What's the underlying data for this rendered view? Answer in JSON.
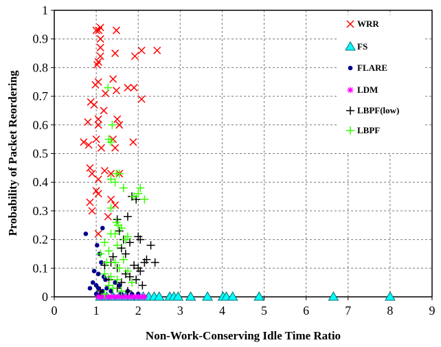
{
  "chart_data": {
    "type": "scatter",
    "title": "",
    "xlabel": "Non-Work-Conserving Idle Time Ratio",
    "ylabel": "Probability of Packet Reordering",
    "xlim": [
      0,
      9
    ],
    "ylim": [
      0,
      1
    ],
    "x_ticks": [
      "0",
      "1",
      "2",
      "3",
      "4",
      "5",
      "6",
      "7",
      "8",
      "9"
    ],
    "y_ticks": [
      "0",
      "0.1",
      "0.2",
      "0.3",
      "0.4",
      "0.5",
      "0.6",
      "0.7",
      "0.8",
      "0.9",
      "1"
    ],
    "grid": true,
    "legend_position": "top-right",
    "series": [
      {
        "name": "WRR",
        "marker": "x",
        "color": "#ff0000",
        "points": [
          [
            1.0,
            0.93
          ],
          [
            1.06,
            0.93
          ],
          [
            1.1,
            0.94
          ],
          [
            1.48,
            0.93
          ],
          [
            1.1,
            0.9
          ],
          [
            1.1,
            0.87
          ],
          [
            1.1,
            0.84
          ],
          [
            1.45,
            0.85
          ],
          [
            1.92,
            0.84
          ],
          [
            2.08,
            0.86
          ],
          [
            2.45,
            0.86
          ],
          [
            1.02,
            0.81
          ],
          [
            1.05,
            0.82
          ],
          [
            0.98,
            0.74
          ],
          [
            1.05,
            0.75
          ],
          [
            1.4,
            0.76
          ],
          [
            1.22,
            0.71
          ],
          [
            1.48,
            0.72
          ],
          [
            1.75,
            0.73
          ],
          [
            1.9,
            0.73
          ],
          [
            2.08,
            0.69
          ],
          [
            0.87,
            0.68
          ],
          [
            0.95,
            0.67
          ],
          [
            1.18,
            0.65
          ],
          [
            1.05,
            0.62
          ],
          [
            1.5,
            0.62
          ],
          [
            1.55,
            0.6
          ],
          [
            0.8,
            0.61
          ],
          [
            1.05,
            0.6
          ],
          [
            0.7,
            0.54
          ],
          [
            0.82,
            0.53
          ],
          [
            1.0,
            0.55
          ],
          [
            1.12,
            0.52
          ],
          [
            1.4,
            0.55
          ],
          [
            1.45,
            0.52
          ],
          [
            1.88,
            0.54
          ],
          [
            0.85,
            0.45
          ],
          [
            0.9,
            0.43
          ],
          [
            1.2,
            0.44
          ],
          [
            1.35,
            0.43
          ],
          [
            1.55,
            0.43
          ],
          [
            1.05,
            0.41
          ],
          [
            1.0,
            0.37
          ],
          [
            1.05,
            0.36
          ],
          [
            0.85,
            0.33
          ],
          [
            0.9,
            0.3
          ],
          [
            1.35,
            0.34
          ],
          [
            1.45,
            0.32
          ],
          [
            1.28,
            0.28
          ],
          [
            1.05,
            0.22
          ]
        ]
      },
      {
        "name": "FS",
        "marker": "triangle",
        "color": "#00ffff",
        "points": [
          [
            1.1,
            0.0
          ],
          [
            1.25,
            0.0
          ],
          [
            1.4,
            0.0
          ],
          [
            1.55,
            0.0
          ],
          [
            1.7,
            0.0
          ],
          [
            1.85,
            0.0
          ],
          [
            2.0,
            0.0
          ],
          [
            2.12,
            0.0
          ],
          [
            2.25,
            0.0
          ],
          [
            2.38,
            0.0
          ],
          [
            2.5,
            0.0
          ],
          [
            2.75,
            0.0
          ],
          [
            2.85,
            0.0
          ],
          [
            2.95,
            0.0
          ],
          [
            3.25,
            0.0
          ],
          [
            3.65,
            0.0
          ],
          [
            4.02,
            0.0
          ],
          [
            4.1,
            0.0
          ],
          [
            4.25,
            0.0
          ],
          [
            4.88,
            0.0
          ],
          [
            6.65,
            0.0
          ],
          [
            8.0,
            0.0
          ]
        ]
      },
      {
        "name": "FLARE",
        "marker": "circle",
        "color": "#00008b",
        "points": [
          [
            0.75,
            0.22
          ],
          [
            1.15,
            0.24
          ],
          [
            1.02,
            0.18
          ],
          [
            1.08,
            0.15
          ],
          [
            1.12,
            0.12
          ],
          [
            0.95,
            0.09
          ],
          [
            1.05,
            0.08
          ],
          [
            1.18,
            0.07
          ],
          [
            1.22,
            0.06
          ],
          [
            0.92,
            0.05
          ],
          [
            1.0,
            0.04
          ],
          [
            1.05,
            0.03
          ],
          [
            1.15,
            0.02
          ],
          [
            0.85,
            0.03
          ],
          [
            1.0,
            0.01
          ],
          [
            1.1,
            0.01
          ],
          [
            1.25,
            0.03
          ],
          [
            1.35,
            0.02
          ],
          [
            1.45,
            0.05
          ],
          [
            1.55,
            0.04
          ],
          [
            1.6,
            0.01
          ],
          [
            1.75,
            0.02
          ],
          [
            1.85,
            0.01
          ],
          [
            2.0,
            0.01
          ]
        ]
      },
      {
        "name": "LDM",
        "marker": "star",
        "color": "#ff00ff",
        "points": [
          [
            1.05,
            0.0
          ],
          [
            1.12,
            0.0
          ],
          [
            1.2,
            0.0
          ],
          [
            1.28,
            0.0
          ],
          [
            1.36,
            0.0
          ],
          [
            1.44,
            0.0
          ],
          [
            1.52,
            0.0
          ],
          [
            1.6,
            0.0
          ],
          [
            1.68,
            0.0
          ],
          [
            1.76,
            0.0
          ],
          [
            1.84,
            0.0
          ],
          [
            1.92,
            0.0
          ],
          [
            2.0,
            0.0
          ],
          [
            2.08,
            0.0
          ],
          [
            2.15,
            0.0
          ]
        ]
      },
      {
        "name": "LBPF(low)",
        "marker": "plus",
        "color": "#000000",
        "points": [
          [
            1.5,
            0.27
          ],
          [
            1.75,
            0.28
          ],
          [
            1.85,
            0.35
          ],
          [
            1.95,
            0.34
          ],
          [
            1.55,
            0.23
          ],
          [
            1.65,
            0.2
          ],
          [
            1.8,
            0.19
          ],
          [
            2.0,
            0.21
          ],
          [
            2.05,
            0.2
          ],
          [
            1.6,
            0.17
          ],
          [
            1.7,
            0.15
          ],
          [
            2.3,
            0.18
          ],
          [
            2.2,
            0.13
          ],
          [
            2.15,
            0.12
          ],
          [
            2.4,
            0.12
          ],
          [
            1.4,
            0.14
          ],
          [
            1.35,
            0.12
          ],
          [
            1.9,
            0.11
          ],
          [
            2.0,
            0.1
          ],
          [
            1.2,
            0.11
          ],
          [
            1.5,
            0.1
          ],
          [
            1.7,
            0.08
          ],
          [
            2.05,
            0.09
          ],
          [
            1.8,
            0.07
          ],
          [
            1.95,
            0.06
          ],
          [
            1.3,
            0.06
          ],
          [
            1.6,
            0.05
          ],
          [
            2.1,
            0.04
          ],
          [
            1.5,
            0.03
          ],
          [
            1.75,
            0.02
          ],
          [
            1.1,
            0.02
          ]
        ]
      },
      {
        "name": "LBPF",
        "marker": "plus",
        "color": "#33ff00",
        "points": [
          [
            1.28,
            0.73
          ],
          [
            1.38,
            0.6
          ],
          [
            1.3,
            0.55
          ],
          [
            1.35,
            0.54
          ],
          [
            1.48,
            0.43
          ],
          [
            1.55,
            0.43
          ],
          [
            1.35,
            0.41
          ],
          [
            1.45,
            0.4
          ],
          [
            1.65,
            0.38
          ],
          [
            2.05,
            0.38
          ],
          [
            2.15,
            0.34
          ],
          [
            1.35,
            0.31
          ],
          [
            1.9,
            0.35
          ],
          [
            2.0,
            0.36
          ],
          [
            1.48,
            0.26
          ],
          [
            1.52,
            0.25
          ],
          [
            1.6,
            0.24
          ],
          [
            1.35,
            0.22
          ],
          [
            1.45,
            0.22
          ],
          [
            1.7,
            0.2
          ],
          [
            1.75,
            0.21
          ],
          [
            1.2,
            0.19
          ],
          [
            1.5,
            0.18
          ],
          [
            1.3,
            0.16
          ],
          [
            1.1,
            0.15
          ],
          [
            1.25,
            0.12
          ],
          [
            1.45,
            0.12
          ],
          [
            1.55,
            0.1
          ],
          [
            1.65,
            0.13
          ],
          [
            1.2,
            0.08
          ],
          [
            1.35,
            0.07
          ],
          [
            1.5,
            0.06
          ],
          [
            1.75,
            0.09
          ],
          [
            1.85,
            0.05
          ],
          [
            1.3,
            0.04
          ],
          [
            1.4,
            0.03
          ],
          [
            1.6,
            0.02
          ],
          [
            1.2,
            0.01
          ]
        ]
      }
    ]
  }
}
